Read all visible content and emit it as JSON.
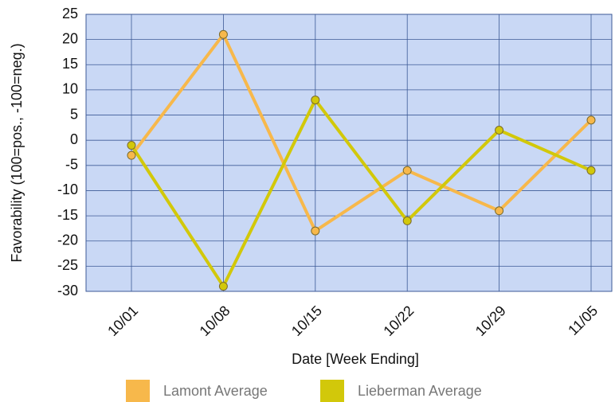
{
  "chart_data": {
    "type": "line",
    "x_label": "Date [Week Ending]",
    "y_label": "Favorability (100=pos., -100=neg.)",
    "categories": [
      "10/01",
      "10/08",
      "10/15",
      "10/22",
      "10/29",
      "11/05"
    ],
    "series": [
      {
        "name": "Lamont Average",
        "color": "#f7b84b",
        "values": [
          -3,
          21,
          -18,
          -6,
          -14,
          4
        ]
      },
      {
        "name": "Lieberman Average",
        "color": "#d2c80a",
        "values": [
          -1,
          -29,
          8,
          -16,
          2,
          -6
        ]
      }
    ],
    "ylim": [
      -30,
      25
    ],
    "yticks": [
      -30,
      -25,
      -20,
      -15,
      -10,
      -5,
      0,
      5,
      10,
      15,
      20,
      25
    ],
    "grid": true,
    "legend": "bottom"
  }
}
